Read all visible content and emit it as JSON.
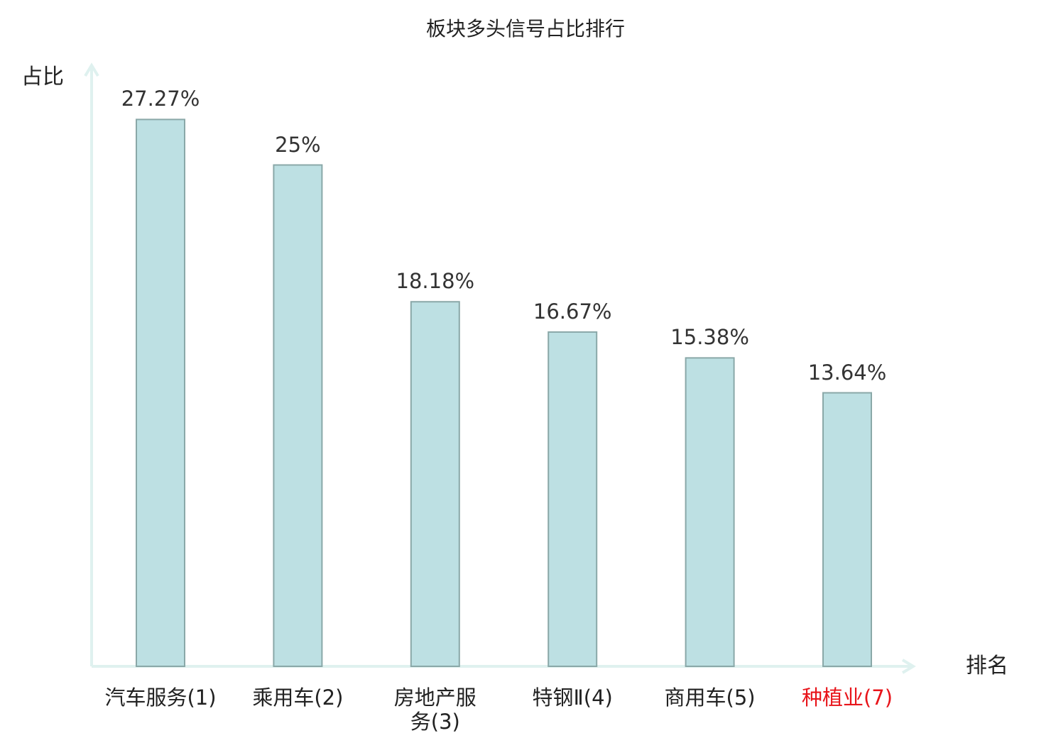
{
  "chart_data": {
    "type": "bar",
    "title": "板块多头信号占比排行",
    "ylabel": "占比",
    "xlabel": "排名",
    "categories": [
      "汽车服务(1)",
      "乘用车(2)",
      "房地产服\n务(3)",
      "特钢Ⅱ(4)",
      "商用车(5)",
      "种植业(7)"
    ],
    "values": [
      27.27,
      25,
      18.18,
      16.67,
      15.38,
      13.64
    ],
    "value_labels": [
      "27.27%",
      "25%",
      "18.18%",
      "16.67%",
      "15.38%",
      "13.64%"
    ],
    "highlight_index": 5,
    "ylim": [
      0,
      30
    ],
    "grid": false,
    "colors": {
      "bar_fill": "#bde0e3",
      "bar_stroke": "#8aa8a8",
      "axis": "#dff1ef",
      "highlight": "#e8141a",
      "text": "#222222"
    }
  }
}
